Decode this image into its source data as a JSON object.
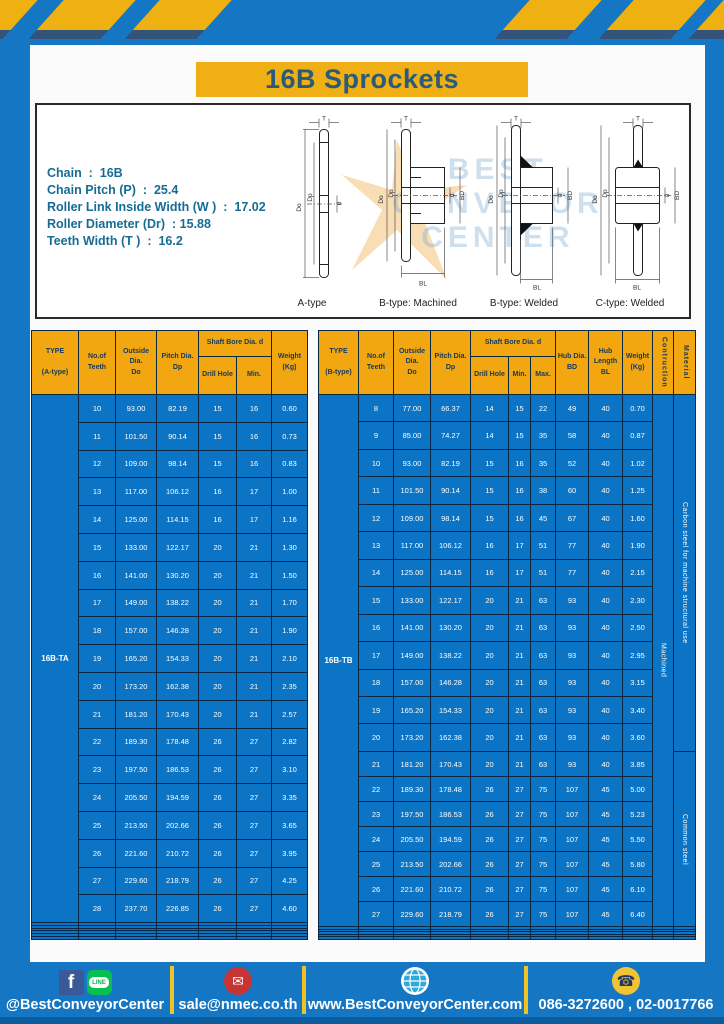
{
  "page": {
    "title": "16B Sprockets",
    "colors": {
      "background_blue": "#1577C3",
      "accent_yellow": "#EFB011",
      "table_header_orange": "#F2A60F",
      "table_body_blue": "#0B74C4",
      "border_dark": "#0A2744",
      "title_text": "#2B5B78"
    }
  },
  "specs": {
    "lines": [
      "Chain  :  16B",
      "Chain Pitch (P)  :  25.4",
      "Roller Link Inside Width (W )  :  17.02",
      "Roller Diameter (Dr)  : 15.88",
      "Teeth Width (T )  :  16.2"
    ]
  },
  "diagrams": {
    "labels": [
      "A-type",
      "B-type: Machined",
      "B-type: Welded",
      "C-type: Welded"
    ],
    "dims": {
      "t": "T",
      "do": "Do",
      "dp": "Dp",
      "d": "d",
      "bd": "BD",
      "bl": "BL"
    },
    "watermark": [
      "BEST",
      "CONVEYOR",
      "CENTER"
    ]
  },
  "table_a": {
    "type_label": "16B-TA",
    "headers": {
      "type": "TYPE\n\n(A-type)",
      "teeth": "No.of\nTeeth",
      "outside": "Outside\nDia.\nDo",
      "pitch": "Pitch Dia.\nDp",
      "shaft_bore": "Shaft Bore Dia. d",
      "drill": "Drill Hole",
      "min": "Min.",
      "weight": "Weight\n(Kg)"
    },
    "rows": [
      [
        "10",
        "93.00",
        "82.19",
        "15",
        "16",
        "0.60"
      ],
      [
        "11",
        "101.50",
        "90.14",
        "15",
        "16",
        "0.73"
      ],
      [
        "12",
        "109.00",
        "98.14",
        "15",
        "16",
        "0.83"
      ],
      [
        "13",
        "117.00",
        "106.12",
        "16",
        "17",
        "1.00"
      ],
      [
        "14",
        "125.00",
        "114.15",
        "16",
        "17",
        "1.16"
      ],
      [
        "15",
        "133.00",
        "122.17",
        "20",
        "21",
        "1.30"
      ],
      [
        "16",
        "141.00",
        "130.20",
        "20",
        "21",
        "1.50"
      ],
      [
        "17",
        "149.00",
        "138.22",
        "20",
        "21",
        "1.70"
      ],
      [
        "18",
        "157.00",
        "146.28",
        "20",
        "21",
        "1.90"
      ],
      [
        "19",
        "165.20",
        "154.33",
        "20",
        "21",
        "2.10"
      ],
      [
        "20",
        "173.20",
        "162.38",
        "20",
        "21",
        "2.35"
      ],
      [
        "21",
        "181.20",
        "170.43",
        "20",
        "21",
        "2.57"
      ],
      [
        "22",
        "189.30",
        "178.48",
        "26",
        "27",
        "2.82"
      ],
      [
        "23",
        "197.50",
        "186.53",
        "26",
        "27",
        "3.10"
      ],
      [
        "24",
        "205.50",
        "194.59",
        "26",
        "27",
        "3.35"
      ],
      [
        "25",
        "213.50",
        "202.66",
        "26",
        "27",
        "3.65"
      ],
      [
        "26",
        "221.60",
        "210.72",
        "26",
        "27",
        "3.95"
      ],
      [
        "27",
        "229.60",
        "218.79",
        "26",
        "27",
        "4.25"
      ],
      [
        "28",
        "237.70",
        "226.85",
        "26",
        "27",
        "4.60"
      ]
    ],
    "empty_rows": 6
  },
  "table_b": {
    "type_label": "16B-TB",
    "headers": {
      "type": "TYPE\n\n(B-type)",
      "teeth": "No.of\nTeeth",
      "outside": "Outside\nDia.\nDo",
      "pitch": "Pitch Dia.\nDp",
      "shaft_bore": "Shaft Bore Dia. d",
      "drill": "Drill Hole",
      "min": "Min.",
      "max": "Max.",
      "hub_dia": "Hub Dia.\nBD",
      "hub_len": "Hub\nLength\nBL",
      "weight": "Weight\n(Kg)",
      "construction": "Contruction",
      "material": "Material"
    },
    "rows": [
      [
        "8",
        "77.00",
        "66.37",
        "14",
        "15",
        "22",
        "49",
        "40",
        "0.70"
      ],
      [
        "9",
        "85.00",
        "74.27",
        "14",
        "15",
        "35",
        "58",
        "40",
        "0.87"
      ],
      [
        "10",
        "93.00",
        "82.19",
        "15",
        "16",
        "35",
        "52",
        "40",
        "1.02"
      ],
      [
        "11",
        "101.50",
        "90.14",
        "15",
        "16",
        "38",
        "60",
        "40",
        "1.25"
      ],
      [
        "12",
        "109.00",
        "98.14",
        "15",
        "16",
        "45",
        "67",
        "40",
        "1.60"
      ],
      [
        "13",
        "117.00",
        "106.12",
        "16",
        "17",
        "51",
        "77",
        "40",
        "1.90"
      ],
      [
        "14",
        "125.00",
        "114.15",
        "16",
        "17",
        "51",
        "77",
        "40",
        "2.15"
      ],
      [
        "15",
        "133.00",
        "122.17",
        "20",
        "21",
        "63",
        "93",
        "40",
        "2.30"
      ],
      [
        "16",
        "141.00",
        "130.20",
        "20",
        "21",
        "63",
        "93",
        "40",
        "2.50"
      ],
      [
        "17",
        "149.00",
        "138.22",
        "20",
        "21",
        "63",
        "93",
        "40",
        "2.95"
      ],
      [
        "18",
        "157.00",
        "146.28",
        "20",
        "21",
        "63",
        "93",
        "40",
        "3.15"
      ],
      [
        "19",
        "165.20",
        "154.33",
        "20",
        "21",
        "63",
        "93",
        "40",
        "3.40"
      ],
      [
        "20",
        "173.20",
        "162.38",
        "20",
        "21",
        "63",
        "93",
        "40",
        "3.60"
      ],
      [
        "21",
        "181.20",
        "170.43",
        "20",
        "21",
        "63",
        "93",
        "40",
        "3.85"
      ],
      [
        "22",
        "189.30",
        "178.48",
        "26",
        "27",
        "75",
        "107",
        "45",
        "5.00"
      ],
      [
        "23",
        "197.50",
        "186.53",
        "26",
        "27",
        "75",
        "107",
        "45",
        "5.23"
      ],
      [
        "24",
        "205.50",
        "194.59",
        "26",
        "27",
        "75",
        "107",
        "45",
        "5.50"
      ],
      [
        "25",
        "213.50",
        "202.66",
        "26",
        "27",
        "75",
        "107",
        "45",
        "5.80"
      ],
      [
        "26",
        "221.60",
        "210.72",
        "26",
        "27",
        "75",
        "107",
        "45",
        "6.10"
      ],
      [
        "27",
        "229.60",
        "218.79",
        "26",
        "27",
        "75",
        "107",
        "45",
        "6.40"
      ]
    ],
    "construction": "Machined",
    "materials": [
      {
        "label": "Carbon steel for machine structural use",
        "span": 13
      },
      {
        "label": "Common steel",
        "span": 7
      }
    ],
    "empty_rows": 5
  },
  "footer": {
    "facebook_letter": "f",
    "line_label": "LINE",
    "social_handle": "@BestConveyorCenter",
    "email": "sale@nmec.co.th",
    "website": "www.BestConveyorCenter.com",
    "phone": "086-3272600 , 02-0017766",
    "mail_glyph": "✉",
    "phone_glyph": "☎"
  }
}
